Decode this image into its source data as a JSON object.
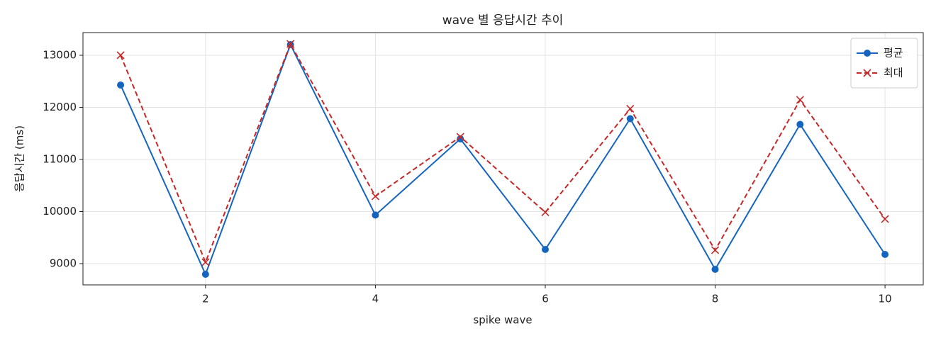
{
  "chart_data": {
    "type": "line",
    "title": "wave 별 응답시간 추이",
    "xlabel": "spike wave",
    "ylabel": "응답시간 (ms)",
    "x": [
      1,
      2,
      3,
      4,
      5,
      6,
      7,
      8,
      9,
      10
    ],
    "series": [
      {
        "name": "평균",
        "color": "#1565c0",
        "marker": "o",
        "dash": "solid",
        "values": [
          12429,
          8796,
          13204,
          9932,
          11395,
          9272,
          11782,
          8891,
          11673,
          9177
        ]
      },
      {
        "name": "최대",
        "color": "#c62828",
        "marker": "x",
        "dash": "dashed",
        "values": [
          13000,
          9027,
          13218,
          10293,
          11435,
          9986,
          11973,
          9259,
          12143,
          9857
        ]
      }
    ],
    "xlim": [
      0.557,
      10.45
    ],
    "xticks": [
      2,
      4,
      6,
      8,
      10
    ],
    "ylim": [
      8592,
      13435
    ],
    "yticks": [
      9000,
      10000,
      11000,
      12000,
      13000
    ],
    "grid": true,
    "legend": "upper right"
  }
}
